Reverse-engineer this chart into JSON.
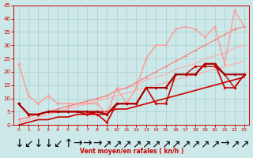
{
  "xlabel": "Vent moyen/en rafales ( kn/h )",
  "background_color": "#cce8e8",
  "grid_color": "#aacece",
  "xlim": [
    -0.5,
    23.5
  ],
  "ylim": [
    0,
    45
  ],
  "yticks": [
    0,
    5,
    10,
    15,
    20,
    25,
    30,
    35,
    40,
    45
  ],
  "xticks": [
    0,
    1,
    2,
    3,
    4,
    5,
    6,
    7,
    8,
    9,
    10,
    11,
    12,
    13,
    14,
    15,
    16,
    17,
    18,
    19,
    20,
    21,
    22,
    23
  ],
  "series": [
    {
      "x": [
        0,
        1,
        2,
        3,
        4,
        5,
        6,
        7,
        8,
        9,
        10,
        11,
        12,
        13,
        14,
        15,
        16,
        17,
        18,
        19,
        20,
        21,
        22,
        23
      ],
      "y": [
        1,
        2,
        3,
        4,
        5,
        6,
        7,
        8,
        9,
        10,
        11,
        12,
        13,
        14,
        15,
        16,
        17,
        18,
        19,
        20,
        21,
        22,
        23,
        24
      ],
      "color": "#ffaaaa",
      "linewidth": 0.8,
      "marker": null
    },
    {
      "x": [
        0,
        1,
        2,
        3,
        4,
        5,
        6,
        7,
        8,
        9,
        10,
        11,
        12,
        13,
        14,
        15,
        16,
        17,
        18,
        19,
        20,
        21,
        22,
        23
      ],
      "y": [
        2,
        3,
        4,
        5,
        6,
        7,
        8,
        9,
        10,
        11,
        13,
        14,
        15,
        17,
        18,
        19,
        21,
        22,
        23,
        25,
        26,
        27,
        29,
        30
      ],
      "color": "#ffaaaa",
      "linewidth": 0.8,
      "marker": null
    },
    {
      "x": [
        0,
        1,
        2,
        3,
        4,
        5,
        6,
        7,
        8,
        9,
        10,
        11,
        12,
        13,
        14,
        15,
        16,
        17,
        18,
        19,
        20,
        21,
        22,
        23
      ],
      "y": [
        2,
        3,
        4,
        5,
        6,
        7,
        8,
        9,
        10,
        11,
        13,
        14,
        16,
        18,
        20,
        22,
        24,
        26,
        28,
        30,
        32,
        34,
        36,
        37
      ],
      "color": "#ff7777",
      "linewidth": 0.8,
      "marker": "D",
      "markersize": 1.5
    },
    {
      "x": [
        0,
        1,
        2,
        3,
        4,
        5,
        6,
        7,
        8,
        9,
        10,
        11,
        12,
        13,
        14,
        15,
        16,
        17,
        18,
        19,
        20,
        21,
        22,
        23
      ],
      "y": [
        23,
        11,
        8,
        11,
        8,
        8,
        8,
        8,
        8,
        4,
        14,
        8,
        14,
        25,
        30,
        30,
        36,
        37,
        36,
        33,
        37,
        23,
        43,
        37
      ],
      "color": "#ff9999",
      "linewidth": 1.0,
      "marker": "D",
      "markersize": 2.0
    },
    {
      "x": [
        0,
        1,
        2,
        3,
        4,
        5,
        6,
        7,
        8,
        9,
        10,
        11,
        12,
        13,
        14,
        15,
        16,
        17,
        18,
        19,
        20,
        21,
        22,
        23
      ],
      "y": [
        0,
        1,
        2,
        2,
        3,
        3,
        4,
        4,
        5,
        5,
        6,
        6,
        7,
        8,
        9,
        10,
        11,
        12,
        13,
        14,
        15,
        16,
        17,
        18
      ],
      "color": "#cc0000",
      "linewidth": 1.2,
      "marker": null
    },
    {
      "x": [
        0,
        1,
        2,
        3,
        4,
        5,
        6,
        7,
        8,
        9,
        10,
        11,
        12,
        13,
        14,
        15,
        16,
        17,
        18,
        19,
        20,
        21,
        22,
        23
      ],
      "y": [
        8,
        4,
        4,
        5,
        5,
        5,
        5,
        4,
        4,
        1,
        8,
        8,
        8,
        14,
        8,
        8,
        19,
        19,
        19,
        23,
        23,
        14,
        14,
        19
      ],
      "color": "#cc0000",
      "linewidth": 1.2,
      "marker": "D",
      "markersize": 2.0
    },
    {
      "x": [
        0,
        1,
        2,
        3,
        4,
        5,
        6,
        7,
        8,
        9,
        10,
        11,
        12,
        13,
        14,
        15,
        16,
        17,
        18,
        19,
        20,
        21,
        22,
        23
      ],
      "y": [
        8,
        4,
        4,
        5,
        5,
        5,
        5,
        5,
        4,
        4,
        8,
        8,
        8,
        14,
        14,
        14,
        19,
        19,
        22,
        22,
        22,
        19,
        14,
        19
      ],
      "color": "#cc0000",
      "linewidth": 1.0,
      "marker": "D",
      "markersize": 2.0
    },
    {
      "x": [
        0,
        1,
        2,
        3,
        4,
        5,
        6,
        7,
        8,
        9,
        10,
        11,
        12,
        13,
        14,
        15,
        16,
        17,
        18,
        19,
        20,
        21,
        22,
        23
      ],
      "y": [
        8,
        4,
        4,
        5,
        5,
        5,
        5,
        5,
        5,
        4,
        8,
        8,
        8,
        14,
        14,
        14,
        19,
        19,
        19,
        23,
        23,
        19,
        19,
        19
      ],
      "color": "#aa0000",
      "linewidth": 1.5,
      "marker": "D",
      "markersize": 2.0
    }
  ],
  "arrows": [
    "↓",
    "↙",
    "↓",
    "↓",
    "↙",
    "↑",
    "→",
    "→",
    "→",
    "↗",
    "↗",
    "↗",
    "↗",
    "↗",
    "↗",
    "↗",
    "↗",
    "↗",
    "↗",
    "↗",
    "↗",
    "→",
    "↗",
    "↗"
  ]
}
